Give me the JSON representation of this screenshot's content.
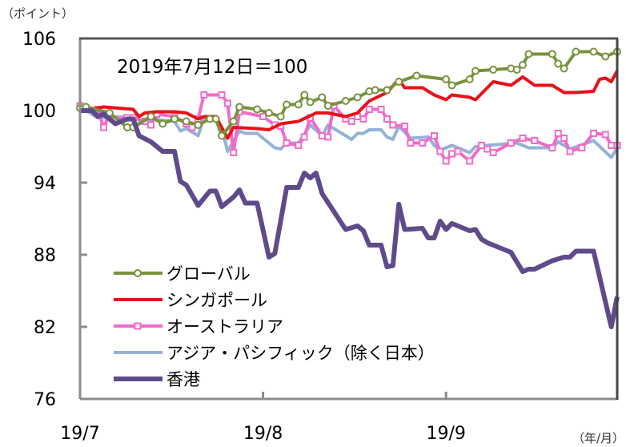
{
  "chart_data": {
    "type": "line",
    "title": "",
    "annotation": "2019年7月12日＝100",
    "ylabel": "（ポイント）",
    "xlabel": "（年/月）",
    "ylim": [
      76,
      106
    ],
    "yticks": [
      "76",
      "82",
      "88",
      "94",
      "100",
      "106"
    ],
    "xlim": [
      "2019-07-01",
      "2019-09-30"
    ],
    "xticks": [
      {
        "date": "2019-07-01",
        "label": "19/7"
      },
      {
        "date": "2019-08-01",
        "label": "19/8"
      },
      {
        "date": "2019-09-01",
        "label": "19/9"
      }
    ],
    "grid": false,
    "legend_position": "bottom-left",
    "series": [
      {
        "name": "グローバル",
        "color": "#77933c",
        "marker": "circle",
        "points": [
          [
            "2019-07-01",
            100.2
          ],
          [
            "2019-07-02",
            100.3
          ],
          [
            "2019-07-06",
            99.8
          ],
          [
            "2019-07-09",
            98.6
          ],
          [
            "2019-07-10",
            98.6
          ],
          [
            "2019-07-13",
            99.5
          ],
          [
            "2019-07-15",
            98.9
          ],
          [
            "2019-07-17",
            99.3
          ],
          [
            "2019-07-19",
            99.1
          ],
          [
            "2019-07-21",
            98.8
          ],
          [
            "2019-07-23",
            99.3
          ],
          [
            "2019-07-24",
            99.3
          ],
          [
            "2019-07-25",
            97.9
          ],
          [
            "2019-07-27",
            99.1
          ],
          [
            "2019-07-28",
            100.3
          ],
          [
            "2019-07-31",
            100.1
          ],
          [
            "2019-08-02",
            99.8
          ],
          [
            "2019-08-04",
            99.5
          ],
          [
            "2019-08-05",
            100.5
          ],
          [
            "2019-08-07",
            100.5
          ],
          [
            "2019-08-08",
            101.3
          ],
          [
            "2019-08-09",
            100.7
          ],
          [
            "2019-08-11",
            101.1
          ],
          [
            "2019-08-12",
            100.4
          ],
          [
            "2019-08-15",
            100.8
          ],
          [
            "2019-08-17",
            101.1
          ],
          [
            "2019-08-19",
            101.6
          ],
          [
            "2019-08-20",
            101.7
          ],
          [
            "2019-08-22",
            101.7
          ],
          [
            "2019-08-24",
            102.4
          ],
          [
            "2019-08-27",
            102.9
          ],
          [
            "2019-09-01",
            102.6
          ],
          [
            "2019-09-02",
            102.1
          ],
          [
            "2019-09-05",
            102.6
          ],
          [
            "2019-09-06",
            103.3
          ],
          [
            "2019-09-09",
            103.4
          ],
          [
            "2019-09-12",
            103.5
          ],
          [
            "2019-09-13",
            103.4
          ],
          [
            "2019-09-14",
            103.8
          ],
          [
            "2019-09-15",
            104.7
          ],
          [
            "2019-09-19",
            104.7
          ],
          [
            "2019-09-20",
            103.9
          ],
          [
            "2019-09-21",
            103.5
          ],
          [
            "2019-09-23",
            104.9
          ],
          [
            "2019-09-26",
            104.9
          ],
          [
            "2019-09-28",
            104.5
          ],
          [
            "2019-09-30",
            104.9
          ]
        ]
      },
      {
        "name": "シンガポール",
        "color": "#e8111a",
        "marker": "none",
        "points": [
          [
            "2019-07-01",
            100.0
          ],
          [
            "2019-07-03",
            100.1
          ],
          [
            "2019-07-05",
            100.3
          ],
          [
            "2019-07-10",
            100.1
          ],
          [
            "2019-07-11",
            99.5
          ],
          [
            "2019-07-12",
            99.8
          ],
          [
            "2019-07-14",
            99.9
          ],
          [
            "2019-07-17",
            99.9
          ],
          [
            "2019-07-19",
            99.8
          ],
          [
            "2019-07-21",
            99.3
          ],
          [
            "2019-07-22",
            99.5
          ],
          [
            "2019-07-24",
            99.5
          ],
          [
            "2019-07-26",
            97.7
          ],
          [
            "2019-07-27",
            98.6
          ],
          [
            "2019-07-31",
            98.5
          ],
          [
            "2019-08-02",
            98.4
          ],
          [
            "2019-08-04",
            98.9
          ],
          [
            "2019-08-07",
            99.1
          ],
          [
            "2019-08-10",
            99.8
          ],
          [
            "2019-08-12",
            99.8
          ],
          [
            "2019-08-15",
            99.5
          ],
          [
            "2019-08-17",
            99.8
          ],
          [
            "2019-08-19",
            100.8
          ],
          [
            "2019-08-22",
            101.5
          ],
          [
            "2019-08-24",
            102.6
          ],
          [
            "2019-08-25",
            101.9
          ],
          [
            "2019-08-28",
            101.9
          ],
          [
            "2019-08-30",
            101.3
          ],
          [
            "2019-09-01",
            100.9
          ],
          [
            "2019-09-02",
            101.3
          ],
          [
            "2019-09-05",
            101.1
          ],
          [
            "2019-09-06",
            100.9
          ],
          [
            "2019-09-09",
            102.4
          ],
          [
            "2019-09-12",
            102.1
          ],
          [
            "2019-09-14",
            102.8
          ],
          [
            "2019-09-16",
            102.1
          ],
          [
            "2019-09-19",
            102.1
          ],
          [
            "2019-09-21",
            101.5
          ],
          [
            "2019-09-23",
            101.5
          ],
          [
            "2019-09-26",
            101.6
          ],
          [
            "2019-09-27",
            102.6
          ],
          [
            "2019-09-28",
            102.7
          ],
          [
            "2019-09-29",
            102.4
          ],
          [
            "2019-09-30",
            103.3
          ]
        ]
      },
      {
        "name": "オーストラリア",
        "color": "#f26bc9",
        "marker": "square",
        "points": [
          [
            "2019-07-01",
            100.4
          ],
          [
            "2019-07-04",
            100.1
          ],
          [
            "2019-07-05",
            98.6
          ],
          [
            "2019-07-06",
            99.7
          ],
          [
            "2019-07-07",
            99.3
          ],
          [
            "2019-07-09",
            99.4
          ],
          [
            "2019-07-10",
            99.4
          ],
          [
            "2019-07-12",
            99.1
          ],
          [
            "2019-07-13",
            98.8
          ],
          [
            "2019-07-14",
            99.7
          ],
          [
            "2019-07-17",
            99.5
          ],
          [
            "2019-07-19",
            98.9
          ],
          [
            "2019-07-20",
            98.6
          ],
          [
            "2019-07-21",
            99.3
          ],
          [
            "2019-07-22",
            101.3
          ],
          [
            "2019-07-25",
            101.3
          ],
          [
            "2019-07-26",
            100.6
          ],
          [
            "2019-07-27",
            96.5
          ],
          [
            "2019-07-28",
            99.9
          ],
          [
            "2019-08-01",
            99.5
          ],
          [
            "2019-08-03",
            98.8
          ],
          [
            "2019-08-04",
            98.7
          ],
          [
            "2019-08-05",
            97.3
          ],
          [
            "2019-08-07",
            97.1
          ],
          [
            "2019-08-08",
            97.8
          ],
          [
            "2019-08-09",
            99.4
          ],
          [
            "2019-08-11",
            97.9
          ],
          [
            "2019-08-12",
            97.8
          ],
          [
            "2019-08-13",
            100.4
          ],
          [
            "2019-08-15",
            99.3
          ],
          [
            "2019-08-16",
            99.1
          ],
          [
            "2019-08-17",
            99.5
          ],
          [
            "2019-08-18",
            99.3
          ],
          [
            "2019-08-19",
            100.1
          ],
          [
            "2019-08-21",
            100.1
          ],
          [
            "2019-08-22",
            99.3
          ],
          [
            "2019-08-23",
            98.8
          ],
          [
            "2019-08-25",
            98.7
          ],
          [
            "2019-08-26",
            97.3
          ],
          [
            "2019-08-28",
            97.3
          ],
          [
            "2019-08-30",
            97.9
          ],
          [
            "2019-08-31",
            96.6
          ],
          [
            "2019-09-01",
            95.8
          ],
          [
            "2019-09-02",
            96.4
          ],
          [
            "2019-09-03",
            96.6
          ],
          [
            "2019-09-05",
            95.8
          ],
          [
            "2019-09-07",
            97.1
          ],
          [
            "2019-09-08",
            96.8
          ],
          [
            "2019-09-09",
            96.5
          ],
          [
            "2019-09-12",
            97.3
          ],
          [
            "2019-09-14",
            97.7
          ],
          [
            "2019-09-16",
            97.5
          ],
          [
            "2019-09-19",
            96.9
          ],
          [
            "2019-09-20",
            98.1
          ],
          [
            "2019-09-21",
            97.7
          ],
          [
            "2019-09-22",
            96.6
          ],
          [
            "2019-09-24",
            96.9
          ],
          [
            "2019-09-26",
            98.1
          ],
          [
            "2019-09-28",
            98.0
          ],
          [
            "2019-09-29",
            97.1
          ],
          [
            "2019-09-30",
            97.1
          ]
        ]
      },
      {
        "name": "アジア・パシフィック（除く日本）",
        "color": "#95b3d7",
        "marker": "none",
        "points": [
          [
            "2019-07-01",
            100.3
          ],
          [
            "2019-07-04",
            99.4
          ],
          [
            "2019-07-06",
            99.4
          ],
          [
            "2019-07-09",
            99.5
          ],
          [
            "2019-07-10",
            99.5
          ],
          [
            "2019-07-12",
            98.9
          ],
          [
            "2019-07-13",
            99.3
          ],
          [
            "2019-07-17",
            99.1
          ],
          [
            "2019-07-18",
            98.3
          ],
          [
            "2019-07-19",
            98.5
          ],
          [
            "2019-07-21",
            97.9
          ],
          [
            "2019-07-22",
            99.4
          ],
          [
            "2019-07-24",
            99.4
          ],
          [
            "2019-07-25",
            98.6
          ],
          [
            "2019-07-26",
            96.6
          ],
          [
            "2019-07-28",
            98.3
          ],
          [
            "2019-07-29",
            98.1
          ],
          [
            "2019-07-31",
            98.1
          ],
          [
            "2019-08-03",
            96.9
          ],
          [
            "2019-08-04",
            96.8
          ],
          [
            "2019-08-05",
            97.3
          ],
          [
            "2019-08-07",
            97.3
          ],
          [
            "2019-08-09",
            98.8
          ],
          [
            "2019-08-11",
            97.9
          ],
          [
            "2019-08-12",
            98.8
          ],
          [
            "2019-08-16",
            97.6
          ],
          [
            "2019-08-17",
            98.1
          ],
          [
            "2019-08-18",
            98.1
          ],
          [
            "2019-08-19",
            98.4
          ],
          [
            "2019-08-21",
            98.4
          ],
          [
            "2019-08-22",
            97.8
          ],
          [
            "2019-08-23",
            97.6
          ],
          [
            "2019-08-24",
            98.7
          ],
          [
            "2019-08-26",
            97.7
          ],
          [
            "2019-08-29",
            97.8
          ],
          [
            "2019-08-30",
            97.1
          ],
          [
            "2019-08-31",
            96.7
          ],
          [
            "2019-09-02",
            97.1
          ],
          [
            "2019-09-05",
            96.5
          ],
          [
            "2019-09-06",
            97.0
          ],
          [
            "2019-09-08",
            97.1
          ],
          [
            "2019-09-13",
            97.3
          ],
          [
            "2019-09-15",
            96.9
          ],
          [
            "2019-09-19",
            96.9
          ],
          [
            "2019-09-20",
            97.4
          ],
          [
            "2019-09-22",
            96.8
          ],
          [
            "2019-09-26",
            97.5
          ],
          [
            "2019-09-29",
            96.1
          ],
          [
            "2019-09-30",
            96.9
          ]
        ]
      },
      {
        "name": "香港",
        "color": "#5f4b8b",
        "marker": "none",
        "points": [
          [
            "2019-07-01",
            100.0
          ],
          [
            "2019-07-03",
            100.0
          ],
          [
            "2019-07-04",
            99.5
          ],
          [
            "2019-07-05",
            99.7
          ],
          [
            "2019-07-07",
            98.9
          ],
          [
            "2019-07-09",
            99.3
          ],
          [
            "2019-07-10",
            99.3
          ],
          [
            "2019-07-11",
            97.9
          ],
          [
            "2019-07-13",
            97.4
          ],
          [
            "2019-07-15",
            96.6
          ],
          [
            "2019-07-17",
            96.6
          ],
          [
            "2019-07-18",
            94.1
          ],
          [
            "2019-07-19",
            93.8
          ],
          [
            "2019-07-21",
            92.1
          ],
          [
            "2019-07-23",
            93.3
          ],
          [
            "2019-07-24",
            93.3
          ],
          [
            "2019-07-25",
            92.0
          ],
          [
            "2019-07-27",
            92.8
          ],
          [
            "2019-07-28",
            93.4
          ],
          [
            "2019-07-29",
            92.3
          ],
          [
            "2019-07-31",
            92.3
          ],
          [
            "2019-08-02",
            87.8
          ],
          [
            "2019-08-03",
            88.1
          ],
          [
            "2019-08-05",
            93.6
          ],
          [
            "2019-08-07",
            93.6
          ],
          [
            "2019-08-08",
            94.8
          ],
          [
            "2019-08-09",
            94.4
          ],
          [
            "2019-08-10",
            94.8
          ],
          [
            "2019-08-11",
            93.1
          ],
          [
            "2019-08-15",
            90.1
          ],
          [
            "2019-08-17",
            90.4
          ],
          [
            "2019-08-18",
            90.0
          ],
          [
            "2019-08-19",
            88.8
          ],
          [
            "2019-08-21",
            88.8
          ],
          [
            "2019-08-22",
            87.0
          ],
          [
            "2019-08-23",
            87.1
          ],
          [
            "2019-08-24",
            92.2
          ],
          [
            "2019-08-25",
            90.1
          ],
          [
            "2019-08-28",
            90.2
          ],
          [
            "2019-08-29",
            89.4
          ],
          [
            "2019-08-30",
            89.4
          ],
          [
            "2019-08-31",
            90.8
          ],
          [
            "2019-09-01",
            90.1
          ],
          [
            "2019-09-02",
            90.6
          ],
          [
            "2019-09-05",
            90.0
          ],
          [
            "2019-09-06",
            90.1
          ],
          [
            "2019-09-07",
            89.3
          ],
          [
            "2019-09-08",
            89.0
          ],
          [
            "2019-09-12",
            88.2
          ],
          [
            "2019-09-14",
            86.6
          ],
          [
            "2019-09-15",
            86.8
          ],
          [
            "2019-09-16",
            86.8
          ],
          [
            "2019-09-19",
            87.5
          ],
          [
            "2019-09-21",
            87.8
          ],
          [
            "2019-09-22",
            87.8
          ],
          [
            "2019-09-23",
            88.3
          ],
          [
            "2019-09-26",
            88.3
          ],
          [
            "2019-09-29",
            82.0
          ],
          [
            "2019-09-30",
            84.5
          ]
        ]
      }
    ]
  }
}
